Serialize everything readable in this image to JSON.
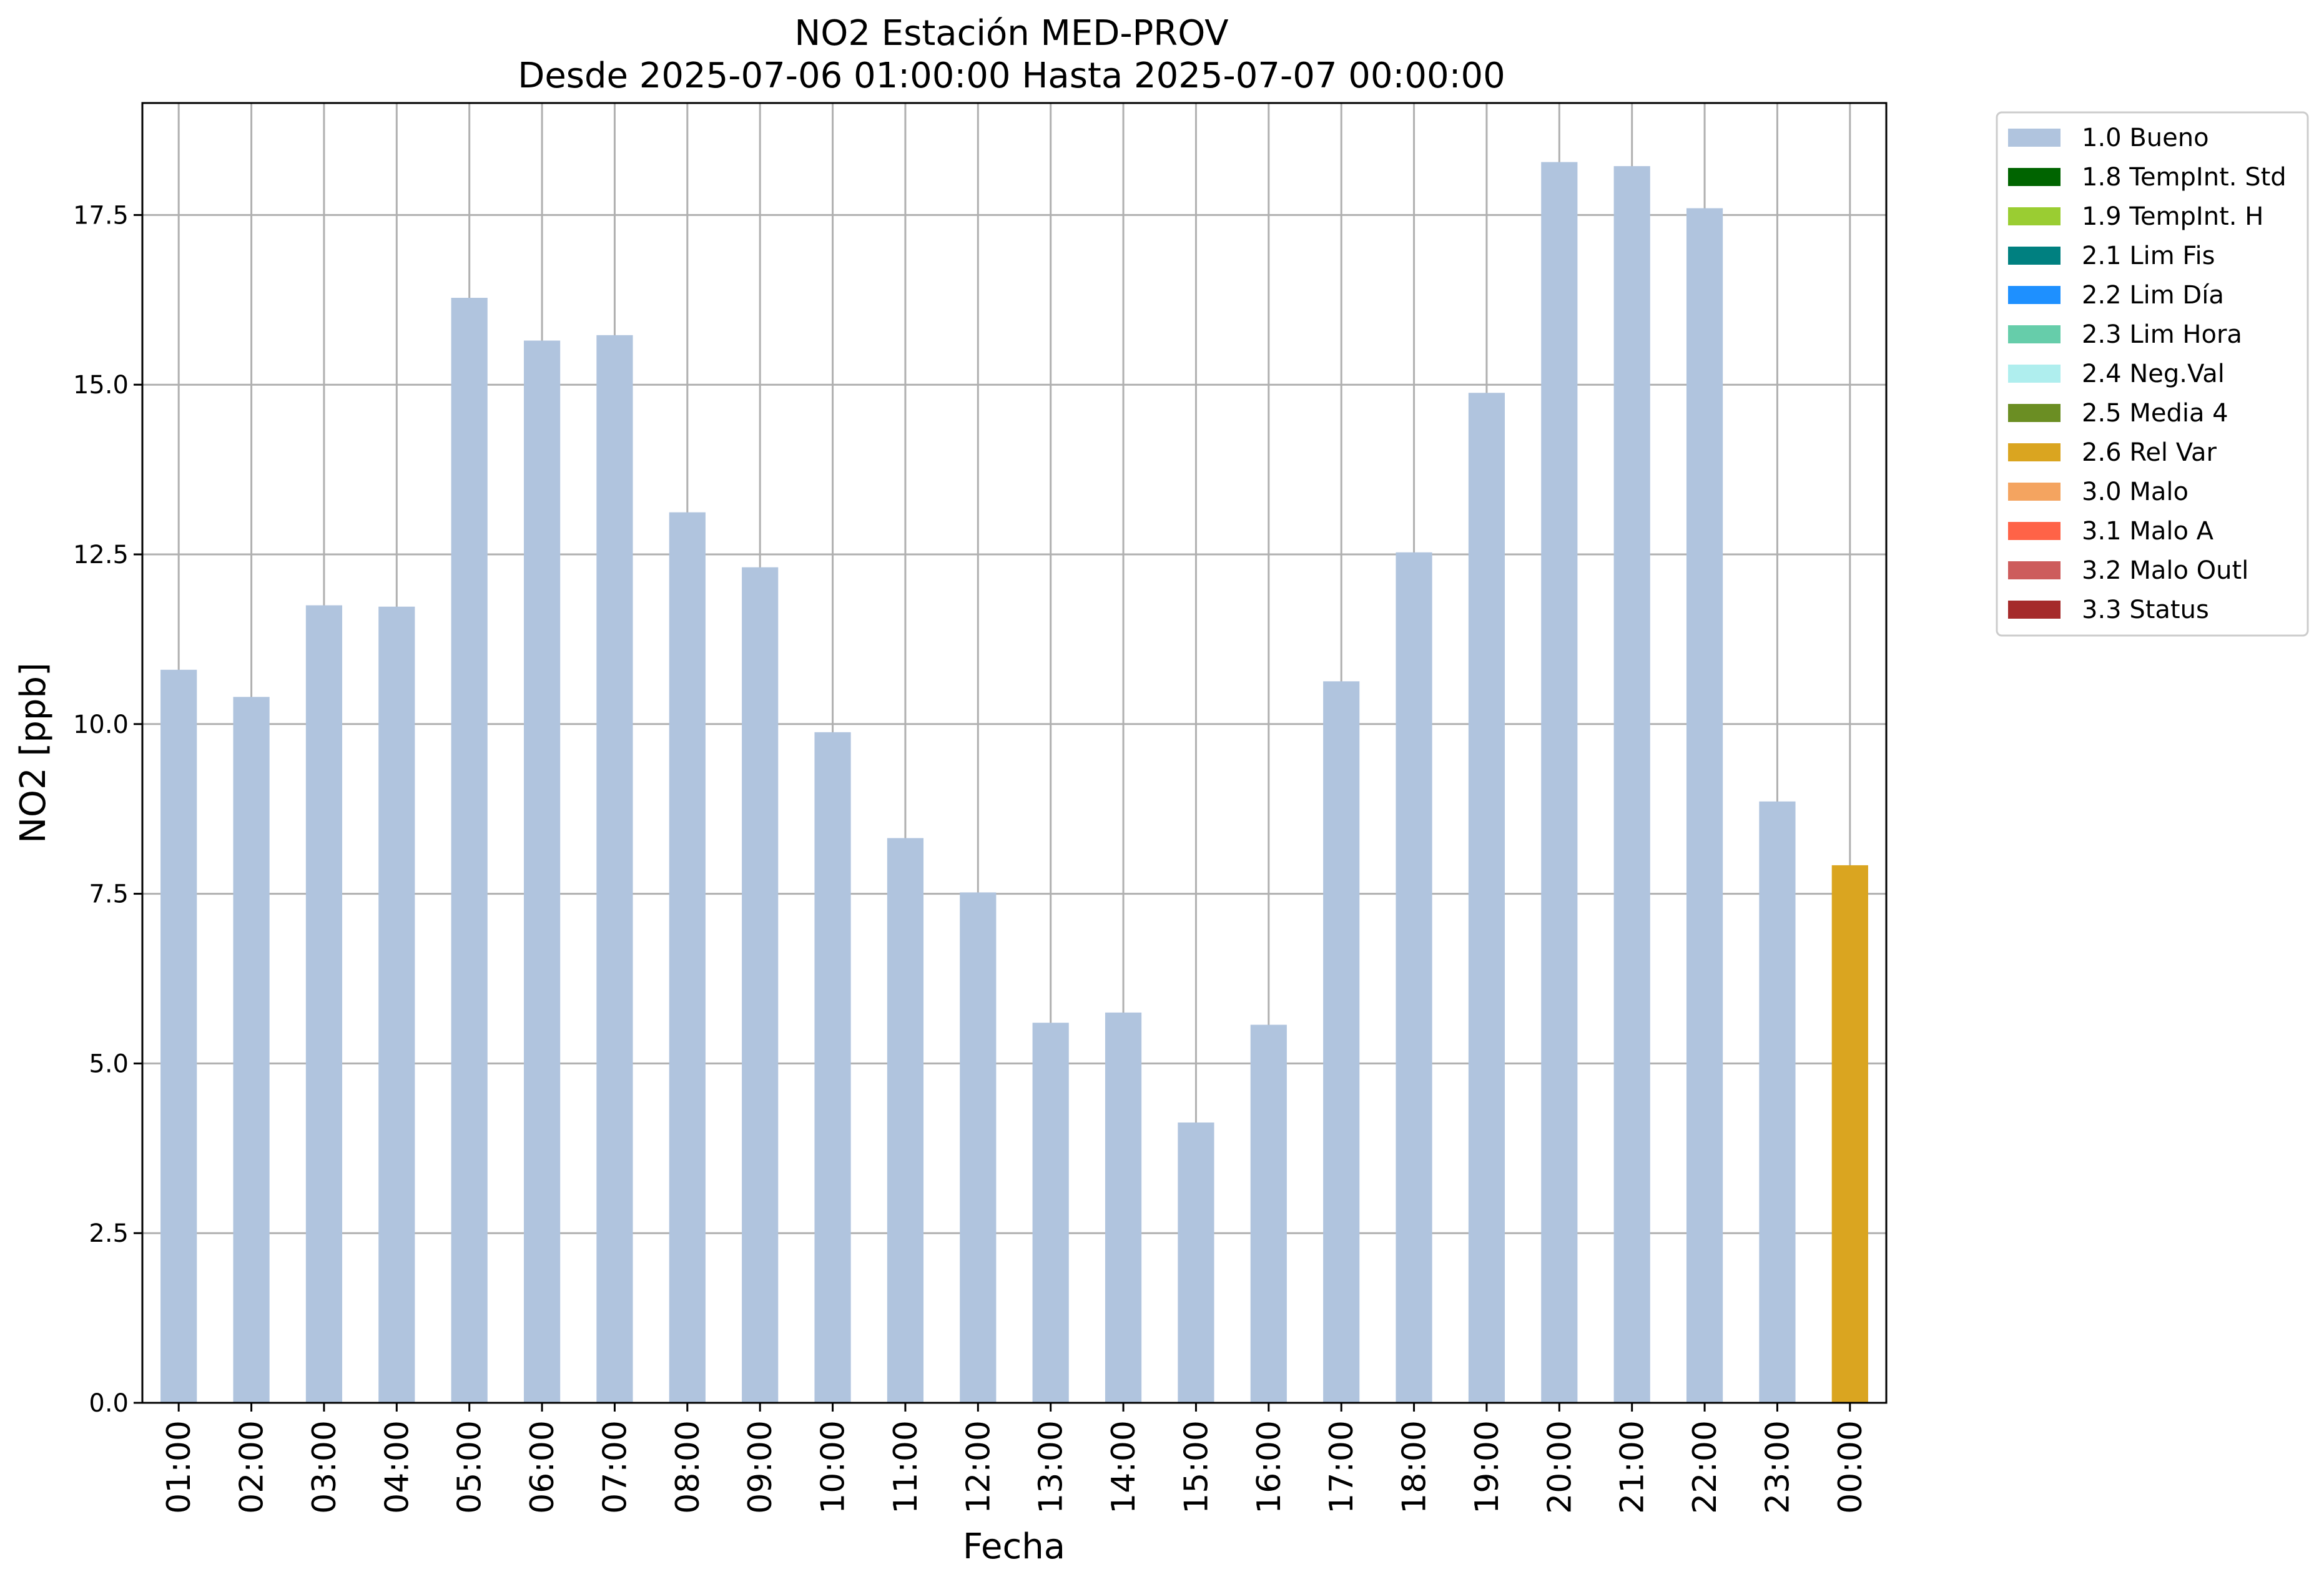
{
  "chart_data": {
    "type": "bar",
    "title": "NO2 Estación MED-PROV",
    "subtitle": "Desde 2025-07-06 01:00:00 Hasta 2025-07-07 00:00:00",
    "xlabel": "Fecha",
    "ylabel": "NO2 [ppb]",
    "ylim": [
      0,
      19.15
    ],
    "yticks": [
      "0.0",
      "2.5",
      "5.0",
      "7.5",
      "10.0",
      "12.5",
      "15.0",
      "17.5"
    ],
    "grid": true,
    "legend_position": "outside-top-right",
    "categories": [
      "01:00",
      "02:00",
      "03:00",
      "04:00",
      "05:00",
      "06:00",
      "07:00",
      "08:00",
      "09:00",
      "10:00",
      "11:00",
      "12:00",
      "13:00",
      "14:00",
      "15:00",
      "16:00",
      "17:00",
      "18:00",
      "19:00",
      "20:00",
      "21:00",
      "22:00",
      "23:00",
      "00:00"
    ],
    "values": [
      10.8,
      10.4,
      11.75,
      11.73,
      16.28,
      15.65,
      15.73,
      13.12,
      12.31,
      9.88,
      8.32,
      7.52,
      5.6,
      5.75,
      4.13,
      5.57,
      10.63,
      12.53,
      14.88,
      18.28,
      18.22,
      17.6,
      8.86,
      7.92
    ],
    "flags": [
      "1.0 Bueno",
      "1.0 Bueno",
      "1.0 Bueno",
      "1.0 Bueno",
      "1.0 Bueno",
      "1.0 Bueno",
      "1.0 Bueno",
      "1.0 Bueno",
      "1.0 Bueno",
      "1.0 Bueno",
      "1.0 Bueno",
      "1.0 Bueno",
      "1.0 Bueno",
      "1.0 Bueno",
      "1.0 Bueno",
      "1.0 Bueno",
      "1.0 Bueno",
      "1.0 Bueno",
      "1.0 Bueno",
      "1.0 Bueno",
      "1.0 Bueno",
      "1.0 Bueno",
      "1.0 Bueno",
      "2.6 Rel Var"
    ],
    "legend": [
      {
        "label": "1.0 Bueno",
        "color": "#b0c4de"
      },
      {
        "label": "1.8 TempInt. Std",
        "color": "#006400"
      },
      {
        "label": "1.9 TempInt. H",
        "color": "#9acd32"
      },
      {
        "label": "2.1 Lim Fis",
        "color": "#008080"
      },
      {
        "label": "2.2 Lim Día",
        "color": "#1e90ff"
      },
      {
        "label": "2.3 Lim Hora",
        "color": "#66cdaa"
      },
      {
        "label": "2.4 Neg.Val",
        "color": "#afeeee"
      },
      {
        "label": "2.5 Media 4",
        "color": "#6b8e23"
      },
      {
        "label": "2.6 Rel Var",
        "color": "#daa520"
      },
      {
        "label": "3.0 Malo",
        "color": "#f4a460"
      },
      {
        "label": "3.1 Malo A",
        "color": "#ff6347"
      },
      {
        "label": "3.2 Malo Outl",
        "color": "#cd5c5c"
      },
      {
        "label": "3.3 Status",
        "color": "#a52a2a"
      }
    ]
  }
}
